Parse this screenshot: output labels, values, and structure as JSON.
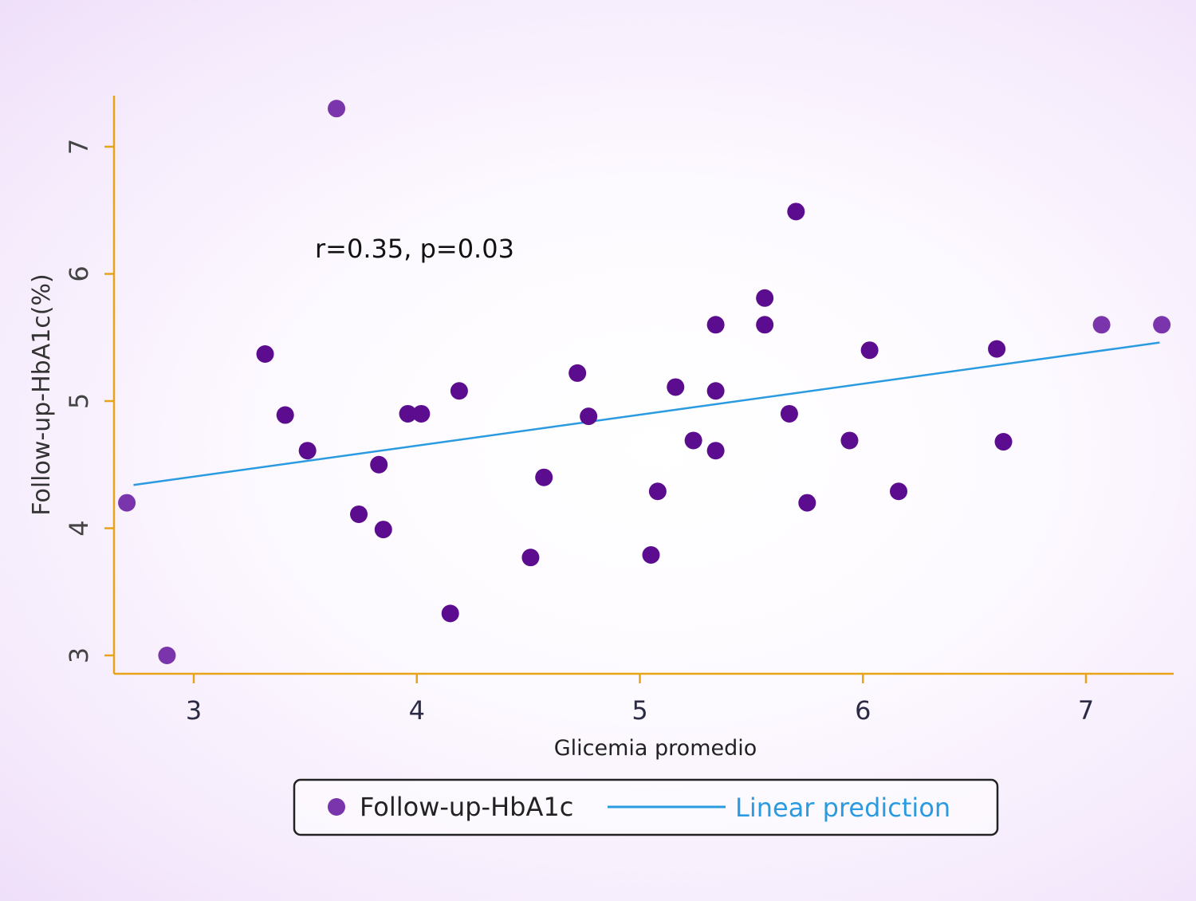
{
  "chart_data": {
    "type": "scatter",
    "xlabel": "Glicemia promedio",
    "ylabel": "Follow-up-HbA1c(%)",
    "xlim": [
      2.64,
      7.38
    ],
    "ylim": [
      2.86,
      7.4
    ],
    "xticks": [
      3,
      4,
      5,
      6,
      7
    ],
    "yticks": [
      3,
      4,
      5,
      6,
      7
    ],
    "grid": false,
    "legend_position": "bottom",
    "annotation": "r=0.35, p=0.03",
    "colors": {
      "points": "#5c0d8f",
      "points_light": "#7a35ad",
      "line": "#2a9be0",
      "axis": "#e8a317",
      "legend_border": "#222222"
    },
    "series": [
      {
        "name": "Follow-up-HbA1c",
        "type": "scatter",
        "points": [
          [
            2.7,
            4.2
          ],
          [
            2.88,
            3.0
          ],
          [
            3.32,
            5.37
          ],
          [
            3.41,
            4.89
          ],
          [
            3.51,
            4.61
          ],
          [
            3.64,
            7.3
          ],
          [
            3.74,
            4.11
          ],
          [
            3.83,
            4.5
          ],
          [
            3.85,
            3.99
          ],
          [
            3.96,
            4.9
          ],
          [
            4.02,
            4.9
          ],
          [
            4.15,
            3.33
          ],
          [
            4.19,
            5.08
          ],
          [
            4.51,
            3.77
          ],
          [
            4.57,
            4.4
          ],
          [
            4.72,
            5.22
          ],
          [
            4.77,
            4.88
          ],
          [
            5.05,
            3.79
          ],
          [
            5.08,
            4.29
          ],
          [
            5.16,
            5.11
          ],
          [
            5.24,
            4.69
          ],
          [
            5.34,
            5.6
          ],
          [
            5.34,
            5.08
          ],
          [
            5.34,
            4.61
          ],
          [
            5.56,
            5.81
          ],
          [
            5.56,
            5.6
          ],
          [
            5.67,
            4.9
          ],
          [
            5.7,
            6.49
          ],
          [
            5.75,
            4.2
          ],
          [
            5.94,
            4.69
          ],
          [
            6.03,
            5.4
          ],
          [
            6.16,
            4.29
          ],
          [
            6.6,
            5.41
          ],
          [
            6.63,
            4.68
          ],
          [
            7.07,
            5.6
          ],
          [
            7.34,
            5.6
          ]
        ]
      },
      {
        "name": "Linear prediction",
        "type": "line",
        "x": [
          2.73,
          7.33
        ],
        "y": [
          4.34,
          5.46
        ]
      }
    ]
  }
}
